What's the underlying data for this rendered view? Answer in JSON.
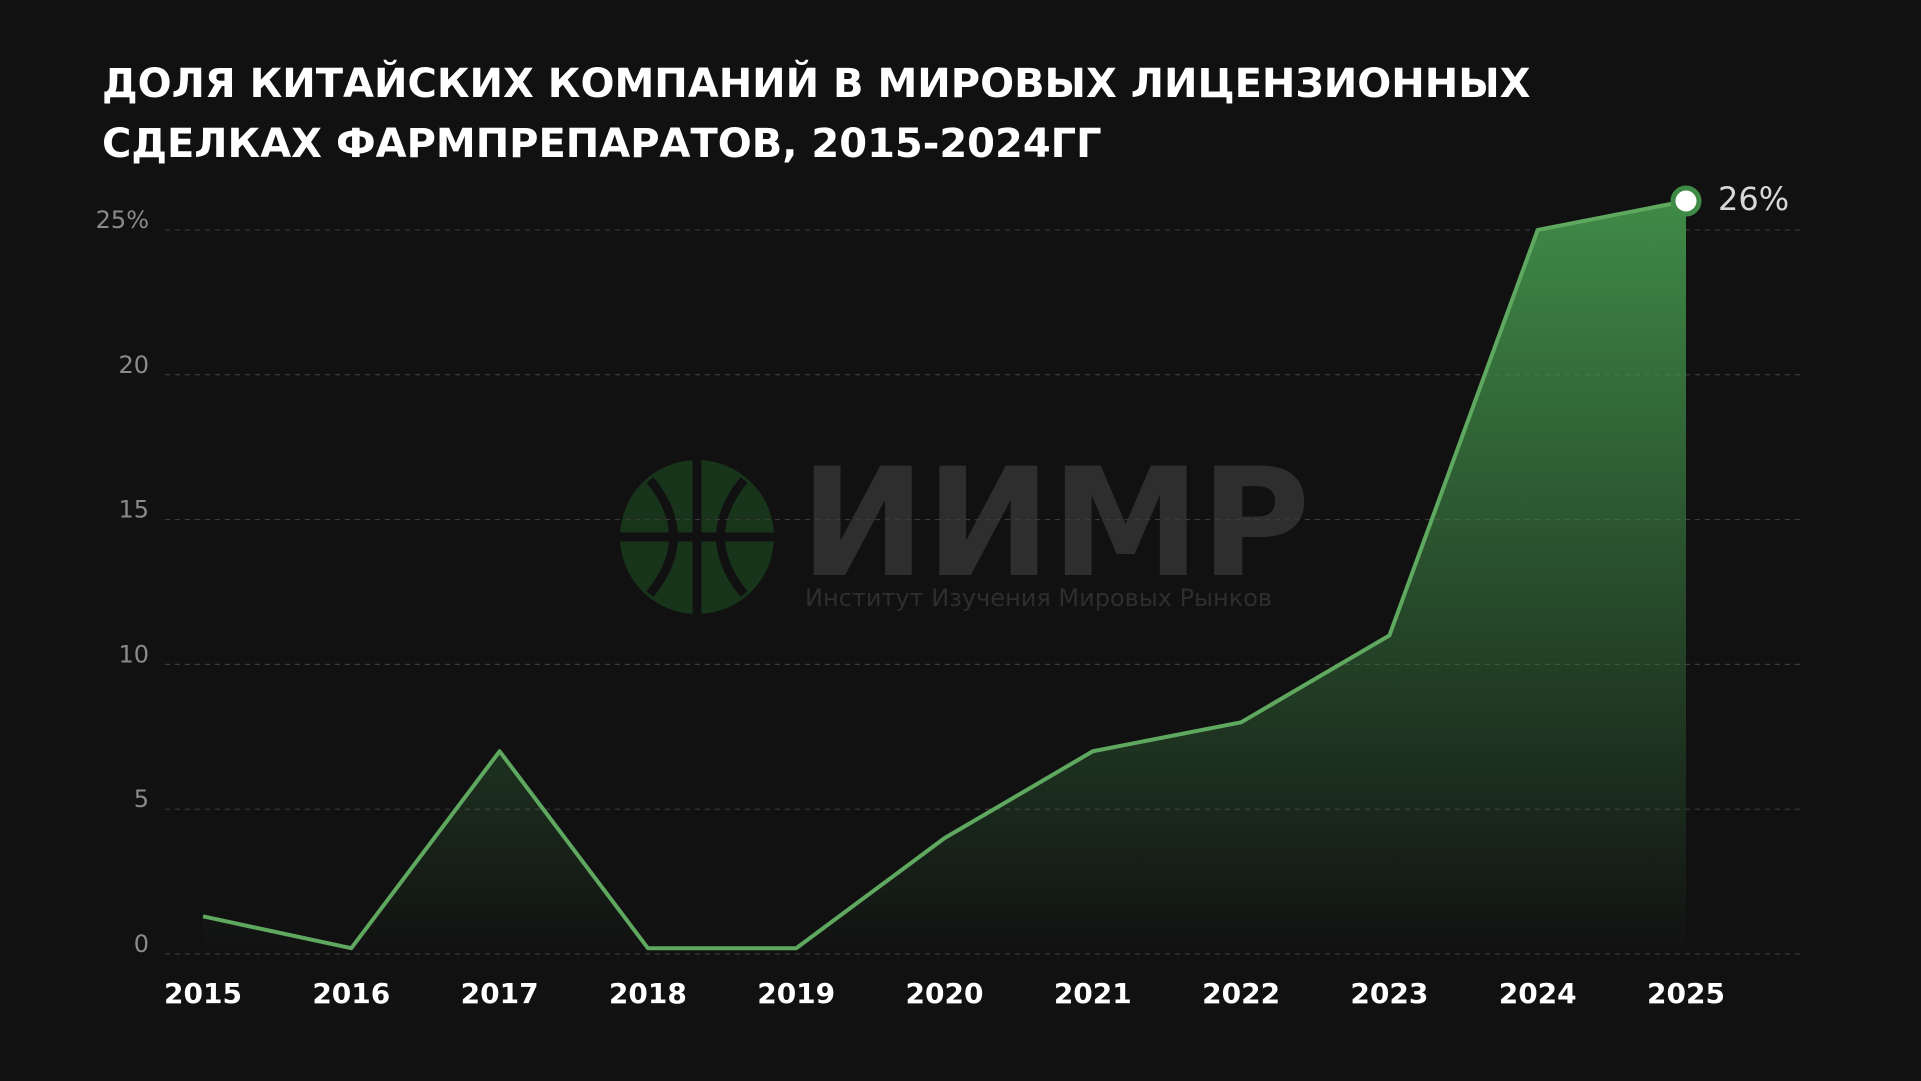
{
  "chart_data": {
    "type": "area",
    "title": "ДОЛЯ КИТАЙСКИХ КОМПАНИЙ В МИРОВЫХ ЛИЦЕНЗИОННЫХ СДЕЛКАХ ФАРМПРЕПАРАТОВ, 2015-2024ГГ",
    "watermark": "ИИМР",
    "watermark_subtitle": "Институт Изучения Мировых Рынков",
    "categories": [
      "2015",
      "2016",
      "2017",
      "2018",
      "2019",
      "2020",
      "2021",
      "2022",
      "2023",
      "2024",
      "2025"
    ],
    "values": [
      1.3,
      0.2,
      7,
      0.2,
      0.2,
      4,
      7,
      8,
      11,
      25,
      26
    ],
    "value_labels": [
      null,
      null,
      null,
      null,
      null,
      null,
      null,
      null,
      null,
      null,
      "26%"
    ],
    "color": "#5fa85f",
    "ylim": [
      0,
      26
    ],
    "yticks": [
      0,
      5,
      10,
      15,
      20,
      {
        "value": 25,
        "label": "25%"
      }
    ],
    "grid": true
  }
}
